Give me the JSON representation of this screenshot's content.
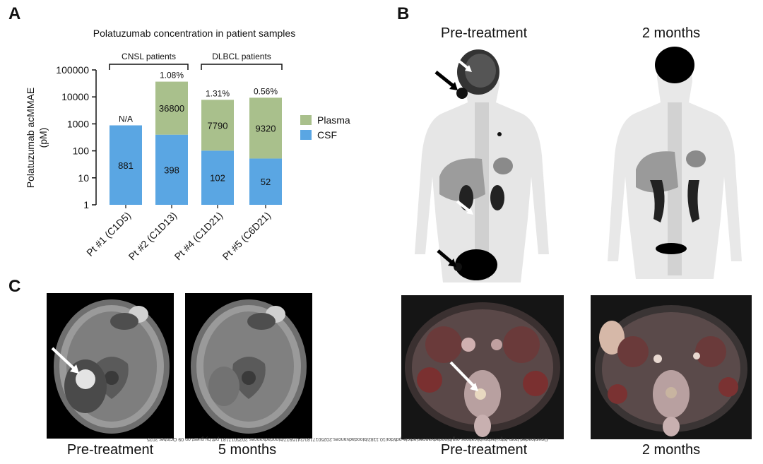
{
  "panels": {
    "a": "A",
    "b": "B",
    "c": "C"
  },
  "chart_data": {
    "type": "bar",
    "stacked": true,
    "yscale": "log",
    "title": "Polatuzumab concentration in patient samples",
    "ylabel": "Polatuzumab acMMAE\n(pM)",
    "ylim": [
      1,
      100000
    ],
    "ytick_labels": [
      "100000",
      "10000",
      "1000",
      "100",
      "10",
      "1"
    ],
    "yticks": [
      100000,
      10000,
      1000,
      100,
      10,
      1
    ],
    "categories": [
      "Pt #1 (C1D5)",
      "Pt #2 (C1D13)",
      "Pt #4 (C1D21)",
      "Pt #5 (C6D21)"
    ],
    "series": [
      {
        "name": "CSF",
        "values": [
          881,
          398,
          102,
          52
        ],
        "color": "#5aa6e3"
      },
      {
        "name": "Plasma",
        "values": [
          null,
          36800,
          7790,
          9320
        ],
        "color": "#a9c08c"
      }
    ],
    "data_labels": {
      "CSF": [
        "881",
        "398",
        "102",
        "52"
      ],
      "Plasma": [
        "",
        "36800",
        "7790",
        "9320"
      ]
    },
    "top_labels": [
      "N/A",
      "1.08%",
      "1.31%",
      "0.56%"
    ],
    "groups": [
      {
        "label": "CNSL patients",
        "categories": [
          0,
          1
        ]
      },
      {
        "label": "DLBCL patients",
        "categories": [
          2,
          3
        ]
      }
    ],
    "legend": {
      "position": "right",
      "order": [
        "Plasma",
        "CSF"
      ]
    }
  },
  "panel_b": {
    "top_left_label": "Pre-treatment",
    "top_right_label": "2 months",
    "bottom_left_label": "Pre-treatment",
    "bottom_right_label": "2 months"
  },
  "panel_c": {
    "left_label": "Pre-treatment",
    "right_label": "5 months"
  },
  "watermark": "Downloaded from http://ashpublications.org/bloodadvances/article-pdf/doi/10.1182/bloodadvances.2025017181/2415927/bloodadvances.2025017181.pdf by guest on 09 October 2025"
}
